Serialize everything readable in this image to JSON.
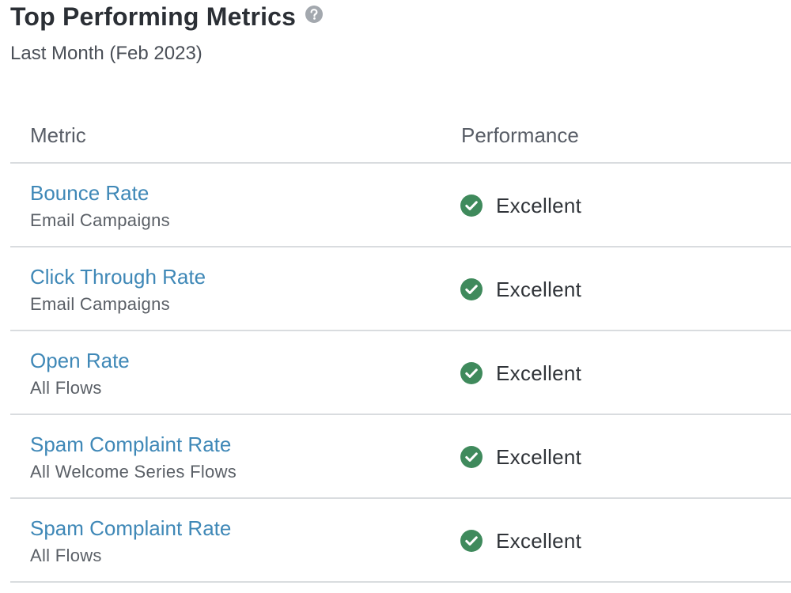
{
  "header": {
    "title": "Top Performing Metrics",
    "subtitle": "Last Month (Feb 2023)",
    "help_icon": "question-circle-icon"
  },
  "table": {
    "columns": {
      "metric": "Metric",
      "performance": "Performance"
    },
    "rows": [
      {
        "name": "Bounce Rate",
        "sub": "Email Campaigns",
        "performance": "Excellent"
      },
      {
        "name": "Click Through Rate",
        "sub": "Email Campaigns",
        "performance": "Excellent"
      },
      {
        "name": "Open Rate",
        "sub": "All Flows",
        "performance": "Excellent"
      },
      {
        "name": "Spam Complaint Rate",
        "sub": "All Welcome Series Flows",
        "performance": "Excellent"
      },
      {
        "name": "Spam Complaint Rate",
        "sub": "All Flows",
        "performance": "Excellent"
      }
    ]
  },
  "colors": {
    "link": "#3f88b7",
    "status_excellent": "#3f8a5c",
    "divider": "#d9dcdf",
    "help_icon": "#a3a8ae"
  },
  "icons": {
    "status": "check-circle-icon"
  }
}
